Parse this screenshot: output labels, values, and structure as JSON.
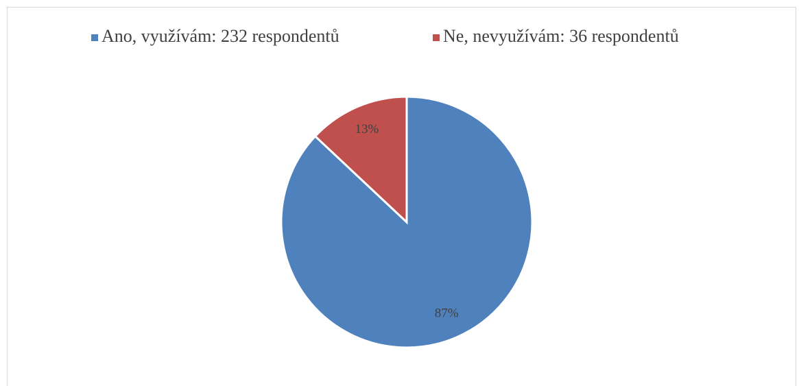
{
  "chart_data": {
    "type": "pie",
    "categories": [
      "Ano, využívám: 232 respondentů",
      "Ne, nevyužívám: 36 respondentů"
    ],
    "values": [
      87,
      13
    ],
    "value_labels": [
      "87%",
      "13%"
    ],
    "colors": [
      "#4f81bd",
      "#c0504d"
    ],
    "legend": "top"
  }
}
